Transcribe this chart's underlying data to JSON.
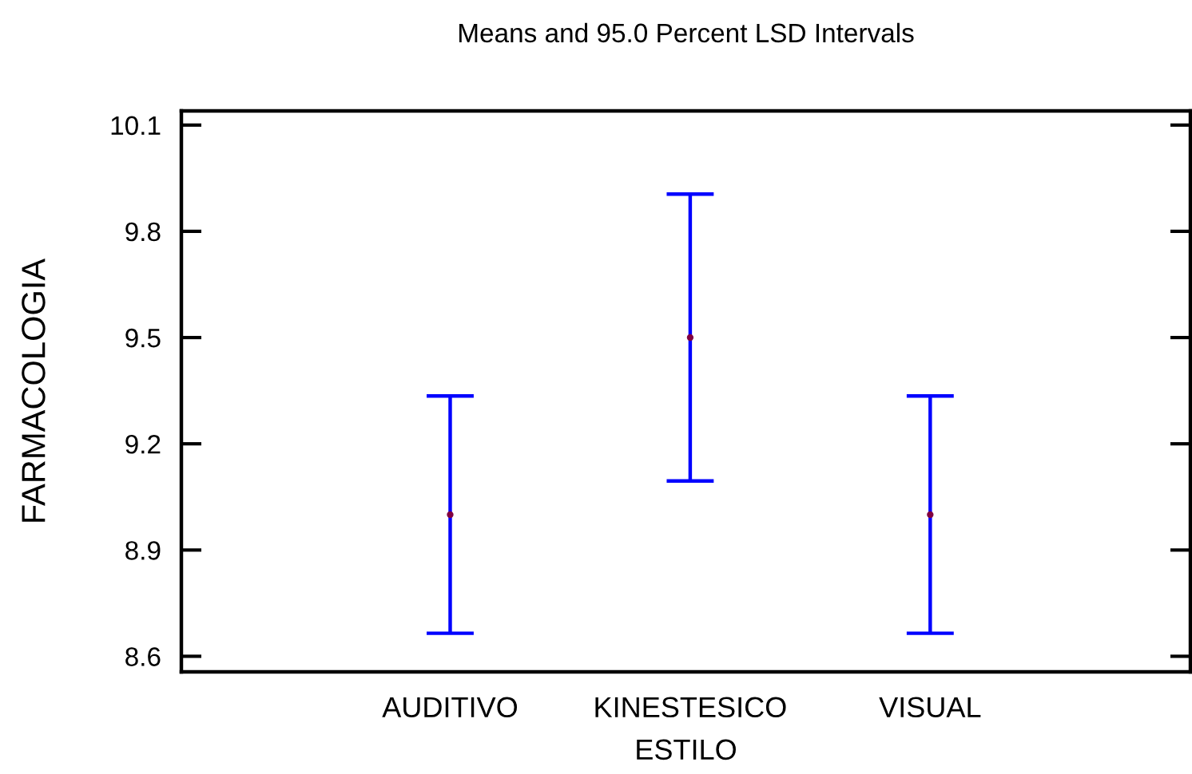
{
  "chart_data": {
    "type": "scatter",
    "title": "Means and 95.0 Percent LSD Intervals",
    "xlabel": "ESTILO",
    "ylabel": "FARMACOLOGIA",
    "categories": [
      "AUDITIVO",
      "KINESTESICO",
      "VISUAL"
    ],
    "series": [
      {
        "color": "#800040",
        "values": [
          9.0,
          9.5,
          9.0
        ],
        "errors": [
          0.335,
          0.405,
          0.335
        ]
      }
    ],
    "ylim": [
      8.556,
      10.14
    ],
    "yticks": [
      8.6,
      8.9,
      9.2,
      9.5,
      9.8,
      10.1
    ],
    "marker": "circle"
  }
}
